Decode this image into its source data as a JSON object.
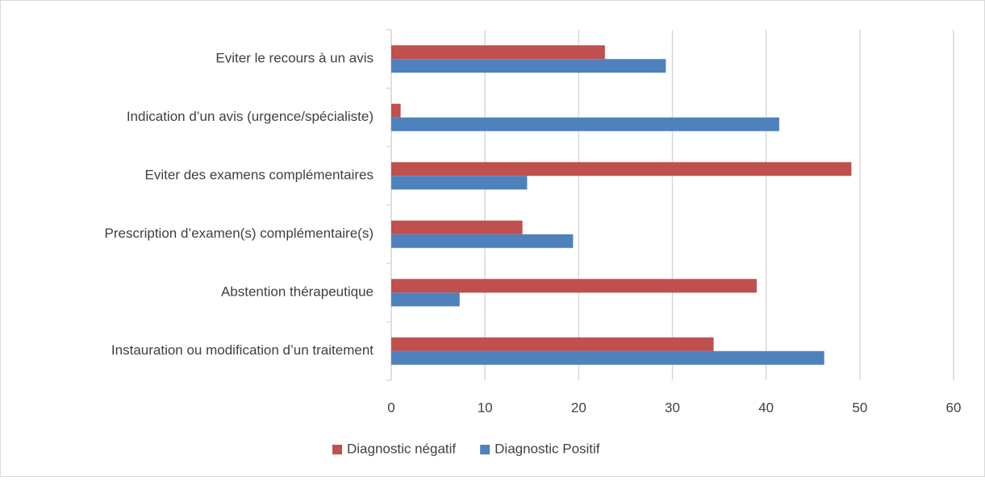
{
  "chart_data": {
    "type": "barh",
    "categories": [
      "Eviter le recours à un avis",
      "Indication d’un avis (urgence/spécialiste)",
      "Eviter des examens complémentaires",
      "Prescription d’examen(s) complémentaire(s)",
      "Abstention thérapeutique",
      "Instauration ou modification d’un traitement"
    ],
    "series": [
      {
        "name": "Diagnostic négatif",
        "color": "#c0504d",
        "values": [
          22.8,
          1.0,
          49.1,
          14.0,
          39.0,
          34.4
        ]
      },
      {
        "name": "Diagnostic Positif",
        "color": "#4f81bd",
        "values": [
          29.3,
          41.4,
          14.5,
          19.4,
          7.3,
          46.2
        ]
      }
    ],
    "xlim": [
      0,
      60
    ],
    "xticks": [
      0,
      10,
      20,
      30,
      40,
      50,
      60
    ],
    "grid": true,
    "legend": "bottom"
  }
}
